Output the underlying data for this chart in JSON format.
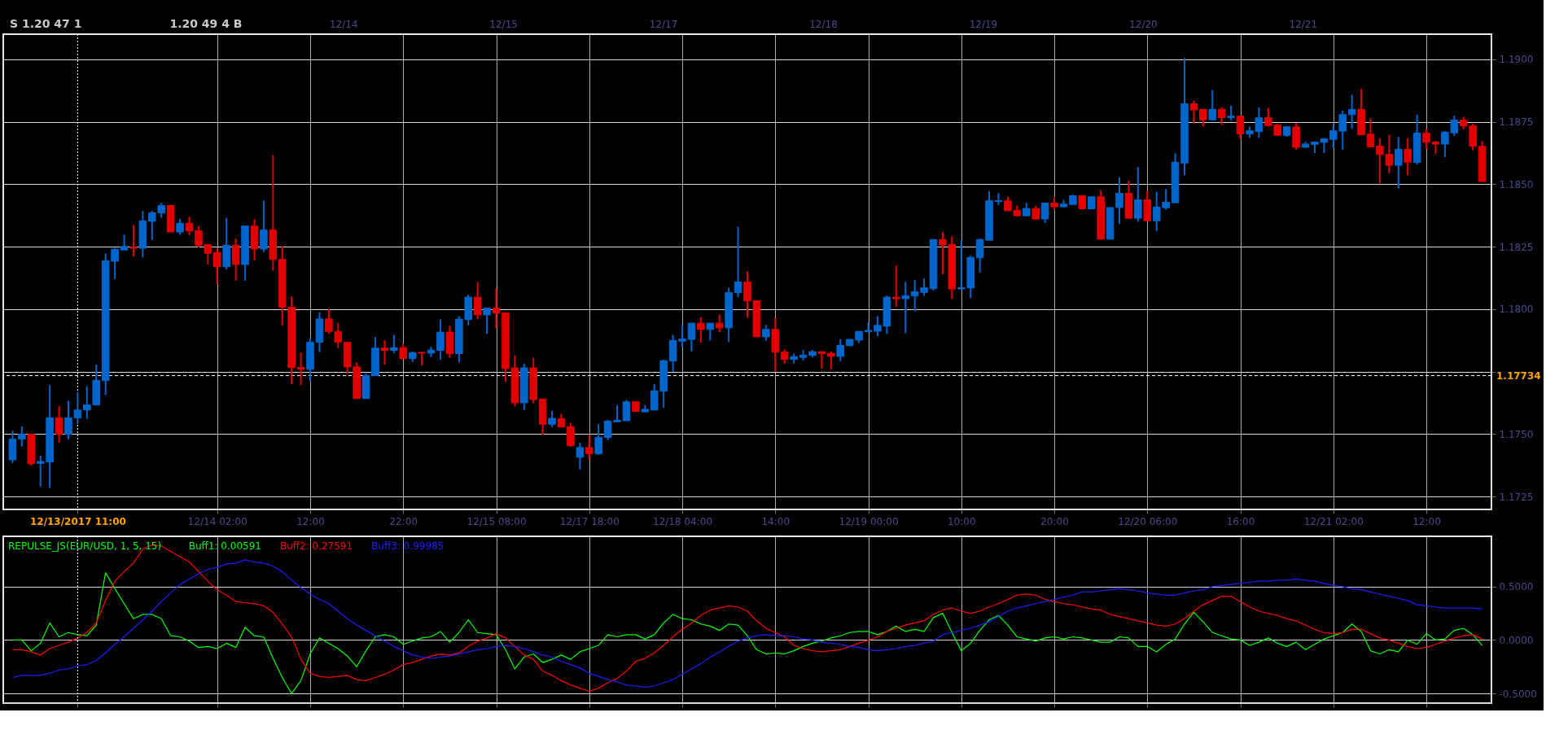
{
  "chart_data": [
    {
      "type": "candlestick",
      "categories": [
        null,
        null,
        null,
        null,
        null,
        null,
        null,
        "12/13/2017 11:00",
        null,
        null,
        null,
        null,
        null,
        null,
        null,
        null,
        null,
        null,
        null,
        null,
        null,
        null,
        "12/14 02:00",
        null,
        null,
        null,
        null,
        null,
        null,
        null,
        null,
        null,
        "12:00",
        null,
        null,
        null,
        null,
        null,
        null,
        null,
        null,
        null,
        "22:00",
        null,
        null,
        null,
        null,
        null,
        null,
        null,
        null,
        null,
        "12/15 08:00",
        null,
        null,
        null,
        null,
        null,
        null,
        null,
        null,
        null,
        "12/17 18:00",
        null,
        null,
        null,
        null,
        null,
        null,
        null,
        null,
        null,
        "12/18 04:00",
        null,
        null,
        null,
        null,
        null,
        null,
        null,
        null,
        null,
        "14:00",
        null,
        null,
        null,
        null,
        null,
        null,
        null,
        null,
        null,
        "12/19 00:00",
        null,
        null,
        null,
        null,
        null,
        null,
        null,
        null,
        null,
        "10:00",
        null,
        null,
        null,
        null,
        null,
        null,
        null,
        null,
        null,
        "20:00",
        null,
        null,
        null,
        null,
        null,
        null,
        null,
        null,
        null,
        "12/20 06:00",
        null,
        null,
        null,
        null,
        null,
        null,
        null,
        null,
        null,
        "16:00",
        null,
        null,
        null,
        null,
        null,
        null,
        null,
        null,
        null,
        "12/21 02:00",
        null,
        null,
        null,
        null,
        null,
        null,
        null,
        null,
        null,
        "12:00",
        null,
        null,
        null,
        null,
        null,
        null
      ],
      "ohlc": [
        [
          1.17397,
          1.17513,
          1.17384,
          1.1748
        ],
        [
          1.1748,
          1.1753,
          1.1745,
          1.175
        ],
        [
          1.175,
          1.175,
          1.17373,
          1.17381
        ],
        [
          1.17382,
          1.17413,
          1.1729,
          1.1739
        ],
        [
          1.17388,
          1.17696,
          1.17284,
          1.17565
        ],
        [
          1.17565,
          1.17612,
          1.17466,
          1.17499
        ],
        [
          1.17499,
          1.17633,
          1.17479,
          1.17565
        ],
        [
          1.17565,
          1.17669,
          1.1754,
          1.17596
        ],
        [
          1.17596,
          1.17692,
          1.17561,
          1.17617
        ],
        [
          1.17616,
          1.17778,
          1.17616,
          1.17715
        ],
        [
          1.17714,
          1.18223,
          1.17656,
          1.18194
        ],
        [
          1.18192,
          1.18245,
          1.18121,
          1.1824
        ],
        [
          1.18237,
          1.18298,
          1.18237,
          1.18251
        ],
        [
          1.18249,
          1.18337,
          1.18211,
          1.18244
        ],
        [
          1.18244,
          1.18393,
          1.18207,
          1.18353
        ],
        [
          1.18352,
          1.18393,
          1.18277,
          1.18386
        ],
        [
          1.18385,
          1.18426,
          1.18366,
          1.18415
        ],
        [
          1.18415,
          1.18415,
          1.18309,
          1.18309
        ],
        [
          1.18309,
          1.18362,
          1.18298,
          1.18344
        ],
        [
          1.18344,
          1.1837,
          1.18296,
          1.18313
        ],
        [
          1.18314,
          1.18333,
          1.18247,
          1.18256
        ],
        [
          1.18259,
          1.18259,
          1.18179,
          1.18224
        ],
        [
          1.18227,
          1.18244,
          1.18099,
          1.1817
        ],
        [
          1.1817,
          1.18366,
          1.1816,
          1.18256
        ],
        [
          1.18256,
          1.18283,
          1.18114,
          1.18179
        ],
        [
          1.18179,
          1.18333,
          1.18114,
          1.18333
        ],
        [
          1.18333,
          1.1836,
          1.18196,
          1.18241
        ],
        [
          1.18241,
          1.18435,
          1.18229,
          1.18317
        ],
        [
          1.18317,
          1.18617,
          1.18154,
          1.18199
        ],
        [
          1.18199,
          1.18253,
          1.17935,
          1.18008
        ],
        [
          1.18008,
          1.18051,
          1.177,
          1.17766
        ],
        [
          1.17767,
          1.17826,
          1.17696,
          1.17759
        ],
        [
          1.17759,
          1.17884,
          1.17712,
          1.17868
        ],
        [
          1.17868,
          1.17988,
          1.17828,
          1.17961
        ],
        [
          1.17961,
          1.18001,
          1.17901,
          1.17911
        ],
        [
          1.17911,
          1.17945,
          1.17844,
          1.17868
        ],
        [
          1.17868,
          1.17868,
          1.17742,
          1.17769
        ],
        [
          1.17769,
          1.17786,
          1.17642,
          1.17642
        ],
        [
          1.17642,
          1.17743,
          1.17642,
          1.17734
        ],
        [
          1.17734,
          1.17888,
          1.17734,
          1.17844
        ],
        [
          1.17844,
          1.17875,
          1.17778,
          1.17835
        ],
        [
          1.17835,
          1.17897,
          1.17824,
          1.17846
        ],
        [
          1.17846,
          1.17862,
          1.17802,
          1.17802
        ],
        [
          1.17802,
          1.17831,
          1.17789,
          1.17826
        ],
        [
          1.17827,
          1.17827,
          1.17775,
          1.17824
        ],
        [
          1.17824,
          1.17848,
          1.17808,
          1.17836
        ],
        [
          1.17835,
          1.17959,
          1.17798,
          1.17908
        ],
        [
          1.17908,
          1.17933,
          1.17806,
          1.17822
        ],
        [
          1.17822,
          1.17972,
          1.17786,
          1.1796
        ],
        [
          1.17959,
          1.18058,
          1.17935,
          1.18048
        ],
        [
          1.18048,
          1.18109,
          1.17959,
          1.17977
        ],
        [
          1.17977,
          1.18004,
          1.17901,
          1.18004
        ],
        [
          1.18004,
          1.18083,
          1.17924,
          1.17984
        ],
        [
          1.17985,
          1.17988,
          1.17709,
          1.17762
        ],
        [
          1.17765,
          1.17815,
          1.17611,
          1.17625
        ],
        [
          1.17625,
          1.17781,
          1.17597,
          1.17765
        ],
        [
          1.17765,
          1.17806,
          1.17623,
          1.17638
        ],
        [
          1.1764,
          1.17642,
          1.17496,
          1.17539
        ],
        [
          1.17539,
          1.17592,
          1.17528,
          1.17563
        ],
        [
          1.17561,
          1.17581,
          1.17528,
          1.17528
        ],
        [
          1.1753,
          1.17545,
          1.17449,
          1.17453
        ],
        [
          1.17407,
          1.17465,
          1.17358,
          1.17446
        ],
        [
          1.17446,
          1.17496,
          1.17397,
          1.17421
        ],
        [
          1.17421,
          1.1754,
          1.17417,
          1.17487
        ],
        [
          1.17486,
          1.17556,
          1.17476,
          1.17552
        ],
        [
          1.17549,
          1.17616,
          1.17549,
          1.17555
        ],
        [
          1.17553,
          1.17636,
          1.17553,
          1.17629
        ],
        [
          1.17629,
          1.17629,
          1.17587,
          1.17591
        ],
        [
          1.17589,
          1.17616,
          1.17587,
          1.17599
        ],
        [
          1.17596,
          1.177,
          1.17596,
          1.17673
        ],
        [
          1.17672,
          1.17798,
          1.17605,
          1.17794
        ],
        [
          1.17792,
          1.17897,
          1.17749,
          1.17875
        ],
        [
          1.17872,
          1.17937,
          1.17848,
          1.17881
        ],
        [
          1.17879,
          1.17944,
          1.17831,
          1.17944
        ],
        [
          1.17944,
          1.17968,
          1.17866,
          1.17919
        ],
        [
          1.17919,
          1.17944,
          1.17875,
          1.17944
        ],
        [
          1.17944,
          1.17978,
          1.17908,
          1.17925
        ],
        [
          1.17925,
          1.18086,
          1.17868,
          1.18066
        ],
        [
          1.18066,
          1.1833,
          1.18048,
          1.18109
        ],
        [
          1.18109,
          1.18151,
          1.17967,
          1.18033
        ],
        [
          1.18034,
          1.18034,
          1.17889,
          1.17889
        ],
        [
          1.17889,
          1.17937,
          1.17874,
          1.17919
        ],
        [
          1.17919,
          1.17965,
          1.17749,
          1.17828
        ],
        [
          1.17828,
          1.17839,
          1.17781,
          1.17799
        ],
        [
          1.17799,
          1.17823,
          1.17782,
          1.1781
        ],
        [
          1.17807,
          1.17836,
          1.17795,
          1.17816
        ],
        [
          1.17815,
          1.17836,
          1.17808,
          1.1783
        ],
        [
          1.1783,
          1.1783,
          1.17762,
          1.17822
        ],
        [
          1.17823,
          1.17831,
          1.17758,
          1.17811
        ],
        [
          1.17811,
          1.17879,
          1.17792,
          1.17855
        ],
        [
          1.17854,
          1.17879,
          1.17852,
          1.17879
        ],
        [
          1.17876,
          1.17911,
          1.17864,
          1.17911
        ],
        [
          1.17909,
          1.17948,
          1.17909,
          1.17915
        ],
        [
          1.17912,
          1.17972,
          1.17892,
          1.17935
        ],
        [
          1.17932,
          1.18054,
          1.17901,
          1.18048
        ],
        [
          1.18048,
          1.18175,
          1.1801,
          1.18042
        ],
        [
          1.18042,
          1.1811,
          1.17904,
          1.18054
        ],
        [
          1.18053,
          1.18117,
          1.17992,
          1.1807
        ],
        [
          1.18067,
          1.18123,
          1.18053,
          1.18086
        ],
        [
          1.18083,
          1.18279,
          1.18074,
          1.18279
        ],
        [
          1.18279,
          1.18309,
          1.1814,
          1.18257
        ],
        [
          1.18259,
          1.18291,
          1.18041,
          1.18081
        ],
        [
          1.18081,
          1.18277,
          1.18081,
          1.18086
        ],
        [
          1.18085,
          1.18214,
          1.18044,
          1.18207
        ],
        [
          1.18206,
          1.18283,
          1.18147,
          1.18279
        ],
        [
          1.18276,
          1.18472,
          1.18276,
          1.18434
        ],
        [
          1.18431,
          1.18464,
          1.18417,
          1.18435
        ],
        [
          1.18434,
          1.1845,
          1.18394,
          1.18394
        ],
        [
          1.18395,
          1.18415,
          1.18371,
          1.18374
        ],
        [
          1.18374,
          1.18425,
          1.18371,
          1.18403
        ],
        [
          1.18403,
          1.18413,
          1.18358,
          1.18361
        ],
        [
          1.18361,
          1.18427,
          1.18345,
          1.18425
        ],
        [
          1.18425,
          1.1845,
          1.18397,
          1.1841
        ],
        [
          1.1841,
          1.18437,
          1.18407,
          1.18421
        ],
        [
          1.18419,
          1.18458,
          1.18417,
          1.18454
        ],
        [
          1.18454,
          1.18454,
          1.18402,
          1.18402
        ],
        [
          1.18402,
          1.1845,
          1.18402,
          1.1845
        ],
        [
          1.1845,
          1.18476,
          1.1828,
          1.1828
        ],
        [
          1.1828,
          1.18407,
          1.1828,
          1.18407
        ],
        [
          1.18407,
          1.18528,
          1.18341,
          1.18464
        ],
        [
          1.18464,
          1.18515,
          1.18364,
          1.18364
        ],
        [
          1.18364,
          1.18569,
          1.1835,
          1.18438
        ],
        [
          1.18438,
          1.18475,
          1.18354,
          1.18354
        ],
        [
          1.18354,
          1.18471,
          1.18313,
          1.18409
        ],
        [
          1.18406,
          1.1848,
          1.18399,
          1.18429
        ],
        [
          1.18426,
          1.18624,
          1.18426,
          1.18588
        ],
        [
          1.18585,
          1.19006,
          1.18536,
          1.18822
        ],
        [
          1.18822,
          1.18835,
          1.18742,
          1.18798
        ],
        [
          1.188,
          1.188,
          1.18731,
          1.18758
        ],
        [
          1.18758,
          1.18877,
          1.18758,
          1.188
        ],
        [
          1.188,
          1.18808,
          1.18738,
          1.18767
        ],
        [
          1.18767,
          1.18815,
          1.18755,
          1.18773
        ],
        [
          1.18773,
          1.18773,
          1.18681,
          1.18702
        ],
        [
          1.18702,
          1.18731,
          1.18686,
          1.18714
        ],
        [
          1.18711,
          1.18808,
          1.18686,
          1.18766
        ],
        [
          1.18766,
          1.18806,
          1.1873,
          1.18735
        ],
        [
          1.18737,
          1.18742,
          1.18696,
          1.18696
        ],
        [
          1.18696,
          1.1873,
          1.1869,
          1.1873
        ],
        [
          1.1873,
          1.18745,
          1.18638,
          1.18648
        ],
        [
          1.18648,
          1.1867,
          1.18648,
          1.18661
        ],
        [
          1.1866,
          1.18672,
          1.18625,
          1.18669
        ],
        [
          1.18668,
          1.18685,
          1.18625,
          1.18682
        ],
        [
          1.1868,
          1.18738,
          1.18645,
          1.18714
        ],
        [
          1.18713,
          1.18795,
          1.18638,
          1.18779
        ],
        [
          1.18779,
          1.18858,
          1.18722,
          1.188
        ],
        [
          1.188,
          1.18883,
          1.18698,
          1.18698
        ],
        [
          1.18701,
          1.18763,
          1.1865,
          1.1865
        ],
        [
          1.18653,
          1.18684,
          1.18504,
          1.18619
        ],
        [
          1.1862,
          1.18698,
          1.18544,
          1.18576
        ],
        [
          1.18576,
          1.18689,
          1.18484,
          1.1864
        ],
        [
          1.1864,
          1.18685,
          1.18536,
          1.18589
        ],
        [
          1.18588,
          1.18779,
          1.18579,
          1.18705
        ],
        [
          1.18705,
          1.18722,
          1.18641,
          1.18668
        ],
        [
          1.18669,
          1.18674,
          1.18622,
          1.18661
        ],
        [
          1.18661,
          1.18713,
          1.18609,
          1.18709
        ],
        [
          1.18706,
          1.18775,
          1.18694,
          1.18757
        ],
        [
          1.18757,
          1.1877,
          1.18721,
          1.18733
        ],
        [
          1.18734,
          1.18743,
          1.18636,
          1.18652
        ],
        [
          1.18652,
          1.18673,
          1.18511,
          1.18511
        ]
      ],
      "colors": [
        "#0066cc",
        "#0066cc",
        "#e00000",
        "#0066cc",
        "#0066cc",
        "#e00000",
        "#0066cc",
        "#0066cc",
        "#0066cc",
        "#0066cc",
        "#0066cc",
        "#0066cc",
        "#0066cc",
        "#e00000",
        "#0066cc",
        "#0066cc",
        "#0066cc",
        "#e00000",
        "#0066cc",
        "#e00000",
        "#e00000",
        "#e00000",
        "#e00000",
        "#0066cc",
        "#e00000",
        "#0066cc",
        "#e00000",
        "#0066cc",
        "#e00000",
        "#e00000",
        "#e00000",
        "#e00000",
        "#0066cc",
        "#0066cc",
        "#e00000",
        "#e00000",
        "#e00000",
        "#e00000",
        "#0066cc",
        "#0066cc",
        "#e00000",
        "#0066cc",
        "#e00000",
        "#0066cc",
        "#e00000",
        "#0066cc",
        "#0066cc",
        "#e00000",
        "#0066cc",
        "#0066cc",
        "#e00000",
        "#0066cc",
        "#e00000",
        "#e00000",
        "#e00000",
        "#0066cc",
        "#e00000",
        "#e00000",
        "#0066cc",
        "#e00000",
        "#e00000",
        "#0066cc",
        "#e00000",
        "#0066cc",
        "#0066cc",
        "#0066cc",
        "#0066cc",
        "#e00000",
        "#0066cc",
        "#0066cc",
        "#0066cc",
        "#0066cc",
        "#0066cc",
        "#0066cc",
        "#e00000",
        "#0066cc",
        "#e00000",
        "#0066cc",
        "#0066cc",
        "#e00000",
        "#e00000",
        "#0066cc",
        "#e00000",
        "#e00000",
        "#0066cc",
        "#0066cc",
        "#0066cc",
        "#e00000",
        "#e00000",
        "#0066cc",
        "#0066cc",
        "#0066cc",
        "#0066cc",
        "#0066cc",
        "#0066cc",
        "#e00000",
        "#0066cc",
        "#0066cc",
        "#0066cc",
        "#0066cc",
        "#e00000",
        "#e00000",
        "#0066cc",
        "#0066cc",
        "#0066cc",
        "#0066cc",
        "#0066cc",
        "#e00000",
        "#e00000",
        "#0066cc",
        "#e00000",
        "#0066cc",
        "#e00000",
        "#0066cc",
        "#0066cc",
        "#e00000",
        "#0066cc",
        "#e00000",
        "#0066cc",
        "#0066cc",
        "#e00000",
        "#0066cc",
        "#e00000",
        "#0066cc",
        "#0066cc",
        "#0066cc",
        "#0066cc",
        "#e00000",
        "#e00000",
        "#0066cc",
        "#e00000",
        "#0066cc",
        "#e00000",
        "#0066cc",
        "#0066cc",
        "#e00000",
        "#e00000",
        "#0066cc",
        "#e00000",
        "#0066cc",
        "#0066cc",
        "#0066cc",
        "#0066cc",
        "#0066cc",
        "#0066cc",
        "#e00000",
        "#e00000",
        "#e00000",
        "#e00000",
        "#0066cc",
        "#e00000",
        "#0066cc",
        "#e00000",
        "#e00000",
        "#0066cc",
        "#0066cc",
        "#e00000",
        "#e00000",
        "#e00000"
      ],
      "ylim": [
        1.17198,
        1.19101
      ],
      "yticks": [
        {
          "value": 1.1725,
          "label": "1.1725"
        },
        {
          "value": 1.175,
          "label": "1.1750"
        },
        {
          "value": 1.1775,
          "label": null
        },
        {
          "value": 1.18,
          "label": "1.1800"
        },
        {
          "value": 1.1825,
          "label": "1.1825"
        },
        {
          "value": 1.185,
          "label": "1.1850"
        },
        {
          "value": 1.1875,
          "label": "1.1875"
        },
        {
          "value": 1.19,
          "label": "1.1900"
        }
      ],
      "grid": true,
      "ref_lines": [
        {
          "axis": "y",
          "value": 1.17734,
          "label": "1.17734",
          "color": "#ffffff",
          "line_style": "dashed"
        },
        {
          "axis": "x",
          "value": "12/13/2017 11:00",
          "color": "#ffffff",
          "line_style": "dotted"
        }
      ],
      "annotations": [
        "S 1.20 47 1",
        "1.20 49 4 B",
        "12/14",
        "12/15",
        "12/17",
        "12/18",
        "12/19",
        "12/20",
        "12/21"
      ]
    },
    {
      "type": "line",
      "title": "REPULSE_JS(EUR/USD, 1, 5, 15)",
      "categories": [
        null,
        null,
        null,
        null,
        null,
        null,
        null,
        "12/13/2017 11:00",
        null,
        null,
        null,
        null,
        null,
        null,
        null,
        null,
        null,
        null,
        null,
        null,
        null,
        null,
        "12/14 02:00",
        null,
        null,
        null,
        null,
        null,
        null,
        null,
        null,
        null,
        "12:00",
        null,
        null,
        null,
        null,
        null,
        null,
        null,
        null,
        null,
        "22:00",
        null,
        null,
        null,
        null,
        null,
        null,
        null,
        null,
        null,
        "12/15 08:00",
        null,
        null,
        null,
        null,
        null,
        null,
        null,
        null,
        null,
        "12/17 18:00",
        null,
        null,
        null,
        null,
        null,
        null,
        null,
        null,
        null,
        "12/18 04:00",
        null,
        null,
        null,
        null,
        null,
        null,
        null,
        null,
        null,
        "14:00",
        null,
        null,
        null,
        null,
        null,
        null,
        null,
        null,
        null,
        "12/19 00:00",
        null,
        null,
        null,
        null,
        null,
        null,
        null,
        null,
        null,
        "10:00",
        null,
        null,
        null,
        null,
        null,
        null,
        null,
        null,
        null,
        "20:00",
        null,
        null,
        null,
        null,
        null,
        null,
        null,
        null,
        null,
        "12/20 06:00",
        null,
        null,
        null,
        null,
        null,
        null,
        null,
        null,
        null,
        "16:00",
        null,
        null,
        null,
        null,
        null,
        null,
        null,
        null,
        null,
        "12/21 02:00",
        null,
        null,
        null,
        null,
        null,
        null,
        null,
        null,
        null,
        "12:00",
        null,
        null,
        null,
        null,
        null,
        null
      ],
      "series": [
        {
          "name": "Buff1: 0.00591",
          "color": "#00ff00",
          "values": [
            0,
            0,
            -0.1,
            -0.03,
            0.16,
            0.03,
            0.07,
            0.05,
            0.04,
            0.14,
            0.63,
            0.48,
            0.34,
            0.2,
            0.24,
            0.24,
            0.2,
            0.04,
            0.03,
            -0.01,
            -0.07,
            -0.06,
            -0.08,
            -0.03,
            -0.07,
            0.12,
            0.04,
            0.03,
            -0.17,
            -0.35,
            -0.5,
            -0.38,
            -0.13,
            0.02,
            -0.03,
            -0.08,
            -0.15,
            -0.25,
            -0.1,
            0.03,
            0.05,
            0.03,
            -0.04,
            -0.01,
            0.02,
            0.03,
            0.08,
            -0.02,
            0.07,
            0.19,
            0.07,
            0.06,
            0.05,
            -0.09,
            -0.27,
            -0.16,
            -0.13,
            -0.21,
            -0.18,
            -0.14,
            -0.18,
            -0.11,
            -0.08,
            -0.05,
            0.05,
            0.03,
            0.05,
            0.05,
            0.01,
            0.05,
            0.16,
            0.24,
            0.2,
            0.19,
            0.15,
            0.13,
            0.09,
            0.15,
            0.14,
            0.04,
            -0.09,
            -0.13,
            -0.12,
            -0.13,
            -0.1,
            -0.06,
            -0.03,
            -0.01,
            0.02,
            0.04,
            0.07,
            0.08,
            0.08,
            0.05,
            0.08,
            0.13,
            0.08,
            0.1,
            0.08,
            0.21,
            0.25,
            0.07,
            -0.1,
            -0.03,
            0.09,
            0.19,
            0.23,
            0.14,
            0.03,
            0.01,
            -0.01,
            0.02,
            0.03,
            0.01,
            0.03,
            0.02,
            0,
            -0.02,
            -0.02,
            0.03,
            0.02,
            -0.06,
            -0.06,
            -0.11,
            -0.04,
            0.01,
            0.15,
            0.26,
            0.17,
            0.07,
            0.04,
            0.01,
            0,
            -0.05,
            -0.02,
            0.02,
            -0.03,
            -0.06,
            -0.02,
            -0.09,
            -0.04,
            0.01,
            0.04,
            0.07,
            0.15,
            0.08,
            -0.1,
            -0.13,
            -0.09,
            -0.11,
            0,
            -0.04,
            0.06,
            0,
            0.01,
            0.09,
            0.11,
            0.05,
            -0.05
          ]
        },
        {
          "name": "Buff2: 0.27591",
          "color": "#ff0000",
          "values": [
            -0.09,
            -0.09,
            -0.11,
            -0.14,
            -0.08,
            -0.05,
            -0.02,
            0.02,
            0.07,
            0.16,
            0.37,
            0.55,
            0.64,
            0.72,
            0.85,
            0.89,
            0.88,
            0.83,
            0.78,
            0.73,
            0.64,
            0.55,
            0.47,
            0.42,
            0.36,
            0.35,
            0.34,
            0.32,
            0.26,
            0.15,
            0.03,
            -0.18,
            -0.31,
            -0.34,
            -0.35,
            -0.34,
            -0.33,
            -0.37,
            -0.38,
            -0.35,
            -0.32,
            -0.28,
            -0.23,
            -0.21,
            -0.18,
            -0.15,
            -0.13,
            -0.14,
            -0.12,
            -0.06,
            -0.01,
            0.02,
            0.06,
            0.02,
            -0.06,
            -0.14,
            -0.18,
            -0.29,
            -0.33,
            -0.38,
            -0.42,
            -0.45,
            -0.48,
            -0.45,
            -0.4,
            -0.36,
            -0.29,
            -0.2,
            -0.17,
            -0.12,
            -0.05,
            0.03,
            0.1,
            0.16,
            0.23,
            0.28,
            0.3,
            0.32,
            0.31,
            0.27,
            0.18,
            0.11,
            0.07,
            0.03,
            -0.05,
            -0.08,
            -0.1,
            -0.11,
            -0.1,
            -0.09,
            -0.06,
            -0.03,
            0,
            0.03,
            0.08,
            0.11,
            0.14,
            0.16,
            0.18,
            0.24,
            0.28,
            0.3,
            0.27,
            0.25,
            0.27,
            0.31,
            0.34,
            0.38,
            0.42,
            0.43,
            0.42,
            0.38,
            0.36,
            0.34,
            0.33,
            0.31,
            0.29,
            0.28,
            0.24,
            0.22,
            0.2,
            0.18,
            0.16,
            0.14,
            0.13,
            0.15,
            0.2,
            0.27,
            0.33,
            0.37,
            0.41,
            0.41,
            0.36,
            0.31,
            0.27,
            0.25,
            0.23,
            0.2,
            0.18,
            0.14,
            0.1,
            0.07,
            0.06,
            0.07,
            0.1,
            0.1,
            0.06,
            0.02,
            0,
            -0.03,
            -0.06,
            -0.08,
            -0.07,
            -0.04,
            -0.01,
            0.02,
            0.04,
            0.05,
            0.01
          ]
        },
        {
          "name": "Buff3: 0.99985",
          "color": "#1e1eff",
          "values": [
            -0.35,
            -0.33,
            -0.33,
            -0.33,
            -0.31,
            -0.28,
            -0.27,
            -0.24,
            -0.23,
            -0.19,
            -0.12,
            -0.04,
            0.03,
            0.11,
            0.19,
            0.27,
            0.36,
            0.44,
            0.52,
            0.57,
            0.62,
            0.66,
            0.68,
            0.71,
            0.72,
            0.75,
            0.73,
            0.72,
            0.69,
            0.64,
            0.56,
            0.49,
            0.43,
            0.38,
            0.34,
            0.27,
            0.2,
            0.14,
            0.09,
            0.04,
            -0.01,
            -0.06,
            -0.1,
            -0.14,
            -0.16,
            -0.17,
            -0.16,
            -0.15,
            -0.13,
            -0.11,
            -0.09,
            -0.08,
            -0.06,
            -0.05,
            -0.06,
            -0.08,
            -0.11,
            -0.14,
            -0.16,
            -0.2,
            -0.23,
            -0.26,
            -0.31,
            -0.34,
            -0.37,
            -0.39,
            -0.42,
            -0.43,
            -0.44,
            -0.43,
            -0.4,
            -0.37,
            -0.32,
            -0.27,
            -0.22,
            -0.16,
            -0.11,
            -0.06,
            -0.01,
            0.02,
            0.04,
            0.05,
            0.04,
            0.04,
            0.03,
            0.01,
            0,
            -0.02,
            -0.03,
            -0.04,
            -0.06,
            -0.07,
            -0.09,
            -0.1,
            -0.09,
            -0.08,
            -0.06,
            -0.05,
            -0.03,
            -0.01,
            0.05,
            0.07,
            0.09,
            0.11,
            0.14,
            0.17,
            0.22,
            0.27,
            0.3,
            0.32,
            0.34,
            0.36,
            0.38,
            0.4,
            0.42,
            0.45,
            0.45,
            0.46,
            0.47,
            0.48,
            0.47,
            0.46,
            0.44,
            0.43,
            0.42,
            0.42,
            0.44,
            0.46,
            0.47,
            0.5,
            0.51,
            0.52,
            0.53,
            0.54,
            0.55,
            0.55,
            0.56,
            0.56,
            0.57,
            0.56,
            0.55,
            0.53,
            0.51,
            0.5,
            0.48,
            0.47,
            0.45,
            0.43,
            0.41,
            0.39,
            0.37,
            0.33,
            0.32,
            0.31,
            0.3,
            0.3,
            0.3,
            0.3,
            0.29
          ]
        }
      ],
      "ylim": [
        -0.59,
        0.97
      ],
      "yticks": [
        {
          "value": -0.5,
          "label": "-0.5000"
        },
        {
          "value": 0,
          "label": "0.0000"
        },
        {
          "value": 0.5,
          "label": "0.5000"
        }
      ],
      "tick_labels": "y",
      "grid": true,
      "ref_lines": [
        {
          "axis": "x",
          "value": "12/13/2017 11:00",
          "color": "#ffffff",
          "line_style": "dotted"
        }
      ]
    }
  ]
}
